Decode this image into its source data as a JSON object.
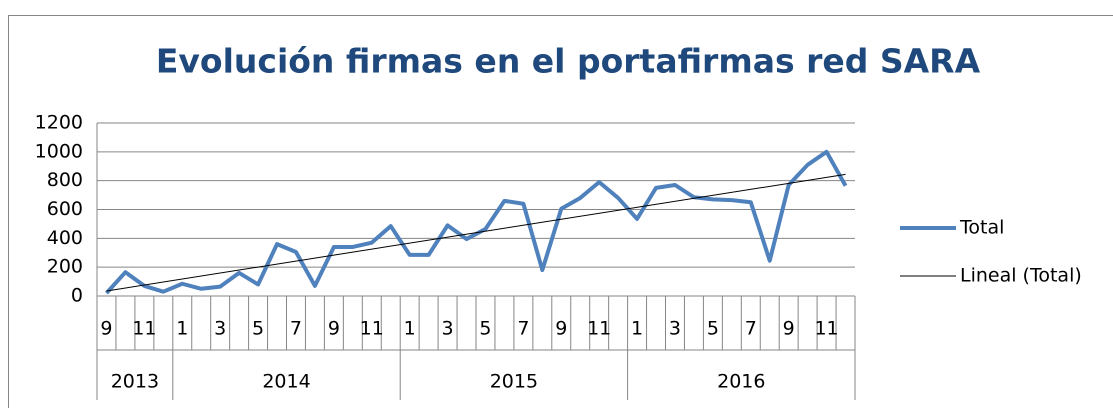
{
  "chart_data": {
    "type": "line",
    "title": "Evolución firmas en el portafirmas red SARA",
    "category_groups": [
      {
        "label": "2013",
        "categories": [
          9,
          null,
          11,
          null
        ]
      },
      {
        "label": "2014",
        "categories": [
          1,
          null,
          3,
          null,
          5,
          null,
          7,
          null,
          9,
          null,
          11,
          null
        ]
      },
      {
        "label": "2015",
        "categories": [
          1,
          null,
          3,
          null,
          5,
          null,
          7,
          null,
          9,
          null,
          11,
          null
        ]
      },
      {
        "label": "2016",
        "categories": [
          1,
          null,
          3,
          null,
          5,
          null,
          7,
          null,
          9,
          null,
          11,
          null
        ]
      }
    ],
    "series": [
      {
        "name": "Total",
        "color": "#4f81bd",
        "values": [
          20,
          165,
          70,
          30,
          85,
          50,
          65,
          160,
          80,
          360,
          305,
          70,
          340,
          340,
          370,
          485,
          285,
          285,
          490,
          395,
          465,
          660,
          640,
          180,
          605,
          680,
          790,
          680,
          535,
          750,
          770,
          685,
          670,
          665,
          650,
          245,
          770,
          910,
          1000,
          765
        ]
      }
    ],
    "trendline": {
      "name": "Lineal (Total)",
      "color": "#000000"
    },
    "ylim": [
      0,
      1200
    ],
    "yticks": [
      0,
      200,
      400,
      600,
      800,
      1000,
      1200
    ],
    "grid": true,
    "legend": "right"
  }
}
